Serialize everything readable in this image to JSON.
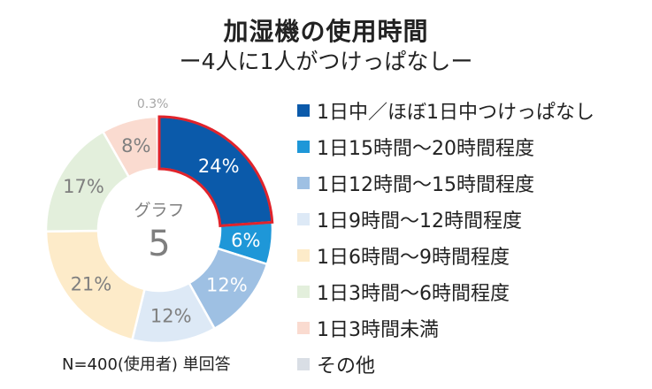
{
  "title": "加湿機の使用時間",
  "subtitle": "ー4人に1人がつけっぱなしー",
  "note": "N=400(使用者) 単回答",
  "chart_data": {
    "type": "pie",
    "variant": "donut",
    "center_label": "グラフ",
    "center_number": "5",
    "highlighted_slice": "1日中／ほぼ1日中つけっぱなし",
    "highlight_color": "#E0232B",
    "label_color": "#7F7F7F",
    "small_label_color": "#A6A6A6",
    "slices": [
      {
        "label": "1日中／ほぼ1日中つけっぱなし",
        "value": 24,
        "display": "24%",
        "color": "#0B5AAA",
        "text_color": "#FFFFFF"
      },
      {
        "label": "1日15時間〜20時間程度",
        "value": 6,
        "display": "6%",
        "color": "#1E97D8",
        "text_color": "#FFFFFF"
      },
      {
        "label": "1日12時間〜15時間程度",
        "value": 12,
        "display": "12%",
        "color": "#9EC0E3",
        "text_color": "#FFFFFF"
      },
      {
        "label": "1日9時間〜12時間程度",
        "value": 12,
        "display": "12%",
        "color": "#DDE9F6",
        "text_color": "#7F7F7F"
      },
      {
        "label": "1日6時間〜9時間程度",
        "value": 21,
        "display": "21%",
        "color": "#FDEBC9",
        "text_color": "#7F7F7F"
      },
      {
        "label": "1日3時間〜6時間程度",
        "value": 17,
        "display": "17%",
        "color": "#E3EFDC",
        "text_color": "#7F7F7F"
      },
      {
        "label": "1日3時間未満",
        "value": 8,
        "display": "8%",
        "color": "#FADBD0",
        "text_color": "#7F7F7F"
      },
      {
        "label": "その他",
        "value": 0.3,
        "display": "0.3%",
        "color": "#D9DEE5",
        "text_color": "#A6A6A6"
      }
    ]
  }
}
